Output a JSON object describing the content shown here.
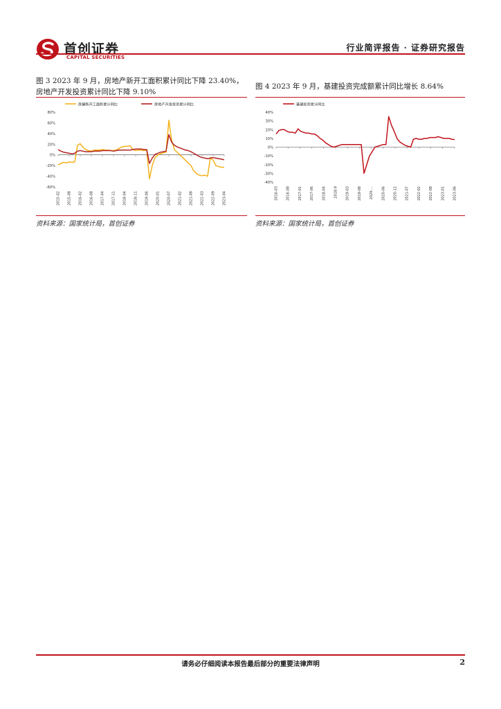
{
  "header": {
    "brand_cn": "首创证券",
    "brand_en": "CAPITAL SECURITIES",
    "report_type": "行业简评报告 · 证券研究报告",
    "colors": {
      "accent": "#c0121a"
    }
  },
  "figures": [
    {
      "caption": "图 3 2023 年 9 月，房地产新开工面积累计同比下降 23.40%，房地产开发投资累计同比下降 9.10%",
      "source": "资料来源：国家统计局，首创证券"
    },
    {
      "caption": "图 4 2023 年 9 月，基建投资完成额累计同比增长 8.64%",
      "source": "资料来源：国家统计局，首创证券"
    }
  ],
  "chart_data": [
    {
      "type": "line",
      "legend_position": "top",
      "series": [
        {
          "name": "房屋新开工面积累计同比",
          "color": "#f2b21a",
          "values": [
            -19,
            -16,
            -14,
            -15,
            -13,
            -14,
            -13,
            18,
            21,
            14,
            10,
            8,
            7,
            9,
            9,
            9,
            10,
            9,
            9,
            8,
            8,
            9,
            12,
            15,
            16,
            16,
            17,
            10,
            8,
            9,
            9,
            8,
            9,
            -45,
            -20,
            -5,
            0,
            2,
            4,
            5,
            65,
            28,
            10,
            5,
            0,
            -5,
            -10,
            -15,
            -20,
            -30,
            -35,
            -38,
            -39,
            -38,
            -40,
            -5,
            -10,
            -20,
            -22,
            -23,
            -23.4
          ]
        },
        {
          "name": "房地产开发投资累计同比",
          "color": "#b22222",
          "values": [
            10,
            7,
            5,
            4,
            3,
            2,
            3,
            7,
            8,
            7,
            6,
            6,
            6,
            7,
            7,
            7,
            8,
            8,
            8,
            8,
            7,
            8,
            9,
            9,
            9,
            9,
            9,
            10,
            11,
            11,
            11,
            10,
            10,
            -16,
            -6,
            1,
            3,
            5,
            6,
            7,
            38,
            24,
            18,
            15,
            13,
            11,
            9,
            8,
            6,
            3,
            0,
            -3,
            -5,
            -6,
            -7,
            -6,
            -5,
            -6,
            -7,
            -8,
            -9.1
          ]
        }
      ],
      "ylim": [
        -60,
        80
      ],
      "yticks": [
        "80%",
        "60%",
        "40%",
        "20%",
        "0%",
        "-20%",
        "-40%",
        "-60%"
      ],
      "xticks": [
        "2015-02",
        "2015-08",
        "2016-02",
        "2016-08",
        "2017-04",
        "2017-11",
        "2018-04",
        "2018-11",
        "2019-06",
        "2020-01",
        "2020-07",
        "2021-02",
        "2021-08",
        "2022-03",
        "2022-09",
        "2023-04"
      ]
    },
    {
      "type": "line",
      "legend_position": "top",
      "series": [
        {
          "name": "基建投资累计同比",
          "color": "#c0121a",
          "values": [
            15,
            19,
            20,
            20,
            18,
            17,
            17,
            16,
            21,
            18,
            17,
            16,
            16,
            15,
            15,
            13,
            10,
            8,
            5,
            3,
            1,
            0,
            1,
            2,
            3,
            3,
            3,
            3,
            3,
            3,
            3,
            3,
            -30,
            -20,
            -10,
            -5,
            0,
            1,
            2,
            3,
            3,
            35,
            25,
            18,
            10,
            6,
            4,
            2,
            1,
            0,
            9,
            10,
            9,
            9,
            10,
            10,
            11,
            11,
            11,
            12,
            11,
            10,
            10,
            10,
            9,
            8.64
          ]
        }
      ],
      "ylim": [
        -40,
        40
      ],
      "yticks": [
        "40%",
        "30%",
        "20%",
        "10%",
        "0%",
        "-10%",
        "-20%",
        "-30%",
        "-40%"
      ],
      "xticks": [
        "2016-03",
        "2016-08",
        "2017-01",
        "2017-06",
        "2018-04",
        "2018-9",
        "2019-03",
        "2019-08",
        "2020-...",
        "2020-06",
        "2020-12",
        "2021-07",
        "2022-02",
        "2022-08",
        "2023-01",
        "2023-06"
      ]
    }
  ],
  "footer": {
    "disclaimer": "请务必仔细阅读本报告最后部分的重要法律声明",
    "page_number": "2"
  }
}
